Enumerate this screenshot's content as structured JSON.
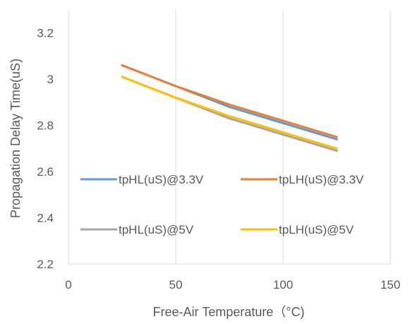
{
  "chart_data": {
    "type": "line",
    "title": "",
    "xlabel": "Free-Air Temperature（°C)",
    "ylabel": "Propagation Delay Time(uS)",
    "xlim": [
      0,
      150
    ],
    "ylim": [
      2.2,
      3.3
    ],
    "x_ticks": [
      "0",
      "50",
      "100",
      "150"
    ],
    "y_ticks": [
      "2.2",
      "2.4",
      "2.6",
      "2.8",
      "3",
      "3.2"
    ],
    "grid": "vertical",
    "legend_position": "inside-bottom",
    "x": [
      25,
      50,
      75,
      100,
      125
    ],
    "series": [
      {
        "name": "tpHL(uS)@3.3V",
        "color": "#5b9bd5",
        "values": [
          3.06,
          2.97,
          2.88,
          2.81,
          2.74
        ]
      },
      {
        "name": "tpLH(uS)@3.3V",
        "color": "#ed7d31",
        "values": [
          3.06,
          2.97,
          2.89,
          2.82,
          2.75
        ]
      },
      {
        "name": "tpHL(uS)@5V",
        "color": "#a5a5a5",
        "values": [
          3.01,
          2.92,
          2.83,
          2.76,
          2.69
        ]
      },
      {
        "name": "tpLH(uS)@5V",
        "color": "#ffc000",
        "values": [
          3.01,
          2.92,
          2.84,
          2.77,
          2.7
        ]
      }
    ]
  }
}
